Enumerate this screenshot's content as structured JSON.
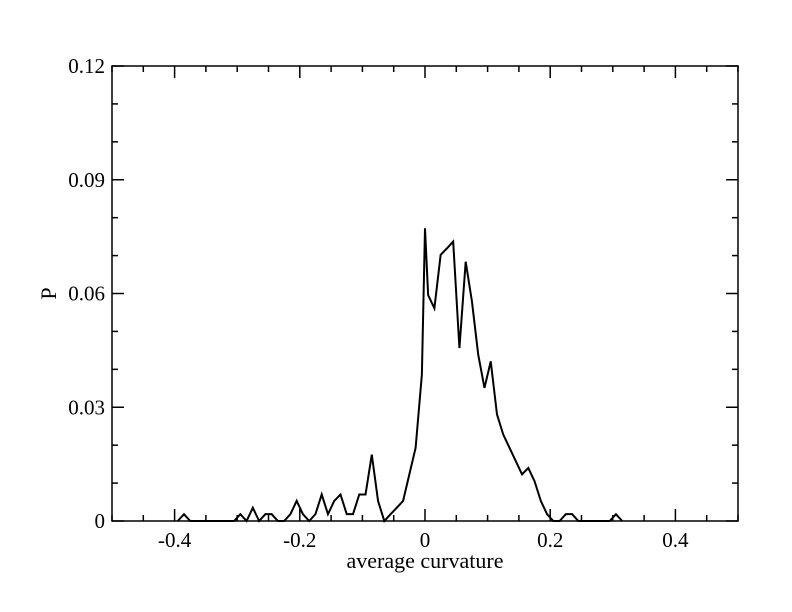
{
  "chart_data": {
    "type": "line",
    "title": "",
    "xlabel": "average curvature",
    "ylabel": "P",
    "xlim": [
      -0.5,
      0.5
    ],
    "ylim": [
      0,
      0.12
    ],
    "grid": false,
    "legend": "none",
    "x_ticks": [
      -0.4,
      -0.2,
      0,
      0.2,
      0.4
    ],
    "x_tick_labels": [
      "-0.4",
      "-0.2",
      "0",
      "0.2",
      "0.4"
    ],
    "y_ticks": [
      0,
      0.03,
      0.06,
      0.09,
      0.12
    ],
    "y_tick_labels": [
      "0",
      "0.03",
      "0.06",
      "0.09",
      "0.12"
    ],
    "x_minor_step": 0.05,
    "y_minor_step": 0.01,
    "line_color": "#000000",
    "series": [
      {
        "x": [
          -0.395,
          -0.385,
          -0.375,
          -0.365,
          -0.305,
          -0.295,
          -0.285,
          -0.275,
          -0.265,
          -0.255,
          -0.245,
          -0.235,
          -0.225,
          -0.215,
          -0.205,
          -0.195,
          -0.185,
          -0.175,
          -0.165,
          -0.155,
          -0.145,
          -0.135,
          -0.125,
          -0.115,
          -0.105,
          -0.095,
          -0.085,
          -0.075,
          -0.065,
          -0.055,
          -0.045,
          -0.035,
          -0.025,
          -0.015,
          -0.005,
          0.0,
          0.005,
          0.015,
          0.025,
          0.035,
          0.045,
          0.055,
          0.065,
          0.075,
          0.085,
          0.095,
          0.105,
          0.115,
          0.125,
          0.135,
          0.145,
          0.155,
          0.165,
          0.175,
          0.185,
          0.195,
          0.205,
          0.215,
          0.225,
          0.235,
          0.245,
          0.255,
          0.265,
          0.295,
          0.305,
          0.315
        ],
        "y": [
          0,
          0.0018,
          0,
          0,
          0,
          0.0018,
          0,
          0.0035,
          0,
          0.0018,
          0.0018,
          0,
          0,
          0.0018,
          0.0053,
          0.0018,
          0,
          0.0018,
          0.007,
          0.0018,
          0.0053,
          0.007,
          0.0018,
          0.0018,
          0.007,
          0.007,
          0.0175,
          0.0053,
          0,
          0.0018,
          0.0035,
          0.0053,
          0.0123,
          0.0193,
          0.0386,
          0.0772,
          0.0596,
          0.0561,
          0.0702,
          0.0719,
          0.0737,
          0.0456,
          0.0684,
          0.0579,
          0.0439,
          0.0351,
          0.0421,
          0.0281,
          0.0228,
          0.0193,
          0.0158,
          0.0123,
          0.014,
          0.0105,
          0.0053,
          0.0018,
          0,
          0,
          0.0018,
          0.0018,
          0,
          0,
          0,
          0,
          0.0018,
          0
        ]
      }
    ]
  }
}
